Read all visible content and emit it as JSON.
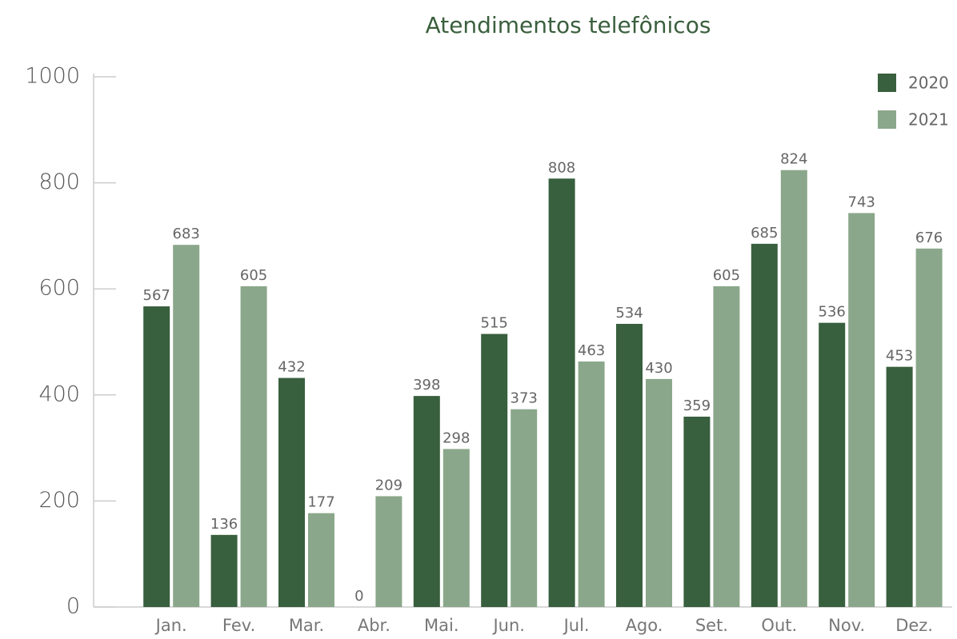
{
  "chart_data": {
    "type": "bar",
    "title": "Atendimentos telefônicos",
    "categories": [
      "Jan.",
      "Fev.",
      "Mar.",
      "Abr.",
      "Mai.",
      "Jun.",
      "Jul.",
      "Ago.",
      "Set.",
      "Out.",
      "Nov.",
      "Dez."
    ],
    "series": [
      {
        "name": "2020",
        "color": "#385f3e",
        "values": [
          567,
          136,
          432,
          0,
          398,
          515,
          808,
          534,
          359,
          685,
          536,
          453
        ]
      },
      {
        "name": "2021",
        "color": "#8ba78b",
        "values": [
          683,
          605,
          177,
          209,
          298,
          373,
          463,
          430,
          605,
          824,
          743,
          676
        ]
      }
    ],
    "ylim": [
      0,
      1000
    ],
    "yticks": [
      0,
      200,
      400,
      600,
      800,
      1000
    ],
    "legend": "top-right"
  }
}
